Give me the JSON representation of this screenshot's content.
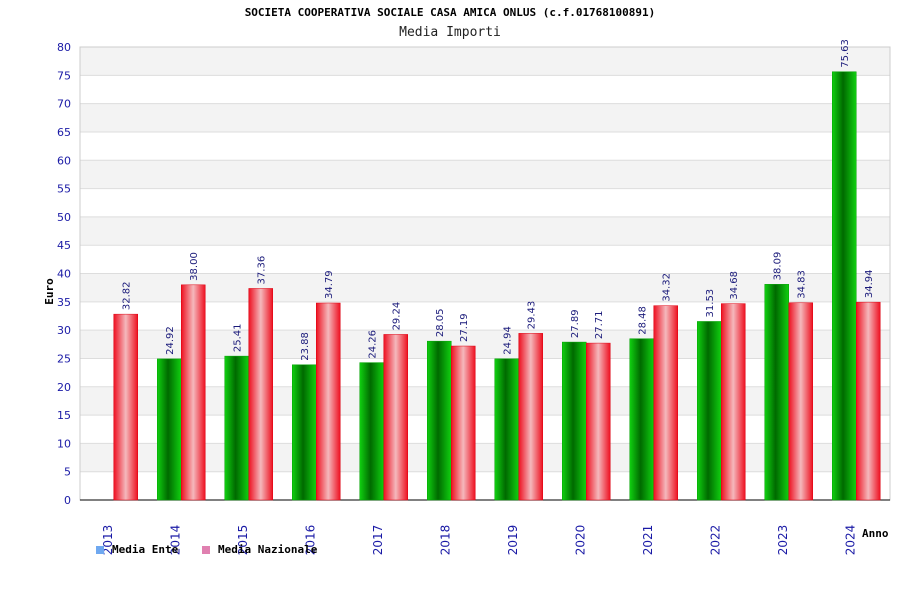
{
  "header": {
    "title": "SOCIETA COOPERATIVA SOCIALE CASA AMICA ONLUS (c.f.01768100891)",
    "subtitle": "Media Importi"
  },
  "legend": {
    "ente_label": "Media Ente",
    "nazionale_label": "Media Nazionale",
    "ente_swatch_color": "#6fa8f0",
    "nazionale_swatch_color": "#e080b0"
  },
  "chart_data": {
    "type": "bar",
    "title": "SOCIETA COOPERATIVA SOCIALE CASA AMICA ONLUS (c.f.01768100891)",
    "subtitle": "Media Importi",
    "xlabel": "Anno",
    "ylabel": "Euro",
    "ylim": [
      0,
      80
    ],
    "yticks": [
      0,
      5,
      10,
      15,
      20,
      25,
      30,
      35,
      40,
      45,
      50,
      55,
      60,
      65,
      70,
      75,
      80
    ],
    "grid": true,
    "legend_position": "bottom-left",
    "categories": [
      "2013",
      "2014",
      "2015",
      "2016",
      "2017",
      "2018",
      "2019",
      "2020",
      "2021",
      "2022",
      "2023",
      "2024"
    ],
    "series": [
      {
        "name": "Media Ente",
        "color": "#00b400",
        "values": [
          null,
          24.92,
          25.41,
          23.88,
          24.26,
          28.05,
          24.94,
          27.89,
          28.48,
          31.53,
          38.09,
          75.63
        ],
        "labels": [
          "",
          "24.92",
          "25.41",
          "23.88",
          "24.26",
          "28.05",
          "24.94",
          "27.89",
          "28.48",
          "31.53",
          "38.09",
          "75.63"
        ]
      },
      {
        "name": "Media Nazionale",
        "color": "#e8202a",
        "values": [
          32.82,
          38.0,
          37.36,
          34.79,
          29.24,
          27.19,
          29.43,
          27.71,
          34.32,
          34.68,
          34.83,
          34.94
        ],
        "labels": [
          "32.82",
          "38.00",
          "37.36",
          "34.79",
          "29.24",
          "27.19",
          "29.43",
          "27.71",
          "34.32",
          "34.68",
          "34.83",
          "34.94"
        ]
      }
    ]
  }
}
